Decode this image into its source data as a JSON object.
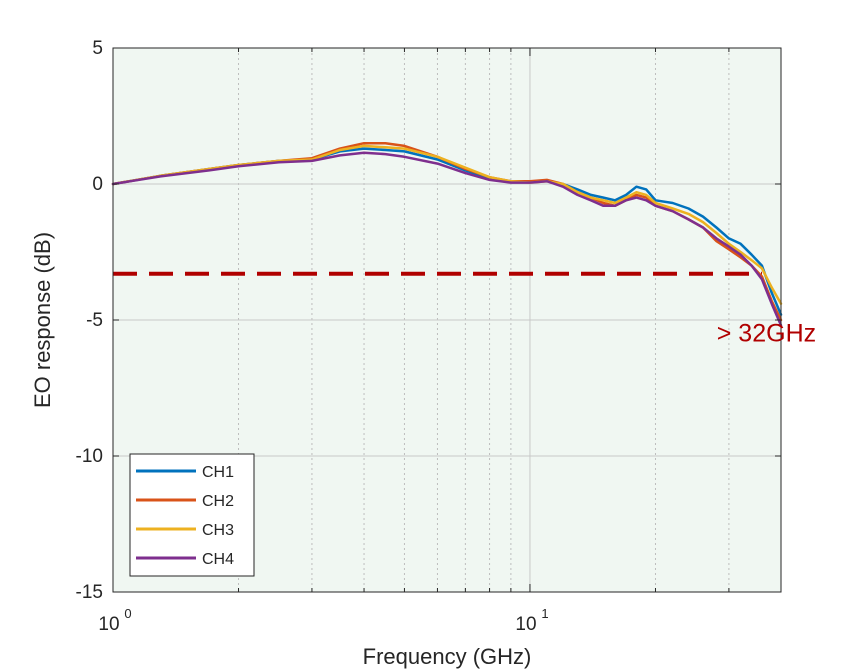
{
  "chart_data": {
    "type": "line",
    "xlabel": "Frequency (GHz)",
    "ylabel": "EO response (dB)",
    "xscale": "log",
    "xlim": [
      1,
      40
    ],
    "ylim": [
      -15,
      5
    ],
    "xticks": [
      {
        "value": 1,
        "base": "10",
        "exp": "0"
      },
      {
        "value": 10,
        "base": "10",
        "exp": "1"
      }
    ],
    "yticks": [
      "5",
      "0",
      "-5",
      "-10",
      "-15"
    ],
    "grid": true,
    "legend_position": "bottom-left",
    "series": [
      {
        "name": "CH1",
        "color": "#0072BD",
        "x": [
          1.0,
          1.3,
          1.7,
          2.0,
          2.5,
          3.0,
          3.5,
          4.0,
          4.5,
          5.0,
          6.0,
          7.0,
          8.0,
          9.0,
          10.0,
          11.0,
          12.0,
          13.0,
          14.0,
          15.0,
          16.0,
          17.0,
          18.0,
          19.0,
          20.0,
          22.0,
          24.0,
          26.0,
          28.0,
          30.0,
          32.0,
          34.0,
          36.0,
          38.0,
          40.0
        ],
        "y": [
          0.0,
          0.3,
          0.55,
          0.7,
          0.85,
          0.9,
          1.2,
          1.3,
          1.25,
          1.2,
          0.9,
          0.5,
          0.2,
          0.1,
          0.1,
          0.1,
          0.0,
          -0.2,
          -0.4,
          -0.5,
          -0.6,
          -0.4,
          -0.1,
          -0.2,
          -0.6,
          -0.7,
          -0.9,
          -1.2,
          -1.6,
          -2.0,
          -2.2,
          -2.6,
          -3.0,
          -4.0,
          -4.8
        ]
      },
      {
        "name": "CH2",
        "color": "#D95319",
        "x": [
          1.0,
          1.3,
          1.7,
          2.0,
          2.5,
          3.0,
          3.5,
          4.0,
          4.5,
          5.0,
          6.0,
          7.0,
          8.0,
          9.0,
          10.0,
          11.0,
          12.0,
          13.0,
          14.0,
          15.0,
          16.0,
          17.0,
          18.0,
          19.0,
          20.0,
          22.0,
          24.0,
          26.0,
          28.0,
          30.0,
          32.0,
          34.0,
          36.0,
          38.0,
          40.0
        ],
        "y": [
          0.0,
          0.3,
          0.55,
          0.7,
          0.85,
          0.95,
          1.3,
          1.5,
          1.5,
          1.4,
          1.0,
          0.55,
          0.25,
          0.1,
          0.1,
          0.15,
          0.0,
          -0.3,
          -0.5,
          -0.7,
          -0.8,
          -0.6,
          -0.4,
          -0.5,
          -0.8,
          -1.0,
          -1.3,
          -1.6,
          -2.1,
          -2.4,
          -2.7,
          -3.0,
          -3.4,
          -4.3,
          -5.0
        ]
      },
      {
        "name": "CH3",
        "color": "#EDB120",
        "x": [
          1.0,
          1.3,
          1.7,
          2.0,
          2.5,
          3.0,
          3.5,
          4.0,
          4.5,
          5.0,
          6.0,
          7.0,
          8.0,
          9.0,
          10.0,
          11.0,
          12.0,
          13.0,
          14.0,
          15.0,
          16.0,
          17.0,
          18.0,
          19.0,
          20.0,
          22.0,
          24.0,
          26.0,
          28.0,
          30.0,
          32.0,
          34.0,
          36.0,
          38.0,
          40.0
        ],
        "y": [
          0.0,
          0.3,
          0.55,
          0.7,
          0.85,
          0.9,
          1.25,
          1.4,
          1.35,
          1.3,
          1.0,
          0.6,
          0.25,
          0.1,
          0.05,
          0.1,
          0.0,
          -0.3,
          -0.5,
          -0.6,
          -0.7,
          -0.5,
          -0.3,
          -0.4,
          -0.7,
          -0.9,
          -1.1,
          -1.4,
          -1.8,
          -2.2,
          -2.5,
          -2.8,
          -3.1,
          -3.8,
          -4.4
        ]
      },
      {
        "name": "CH4",
        "color": "#7E2F8E",
        "x": [
          1.0,
          1.3,
          1.7,
          2.0,
          2.5,
          3.0,
          3.5,
          4.0,
          4.5,
          5.0,
          6.0,
          7.0,
          8.0,
          9.0,
          10.0,
          11.0,
          12.0,
          13.0,
          14.0,
          15.0,
          16.0,
          17.0,
          18.0,
          19.0,
          20.0,
          22.0,
          24.0,
          26.0,
          28.0,
          30.0,
          32.0,
          34.0,
          36.0,
          38.0,
          40.0
        ],
        "y": [
          0.0,
          0.28,
          0.5,
          0.65,
          0.8,
          0.85,
          1.05,
          1.15,
          1.1,
          1.0,
          0.75,
          0.4,
          0.15,
          0.05,
          0.05,
          0.1,
          -0.1,
          -0.4,
          -0.6,
          -0.8,
          -0.8,
          -0.6,
          -0.5,
          -0.6,
          -0.8,
          -1.0,
          -1.3,
          -1.6,
          -2.0,
          -2.3,
          -2.6,
          -3.0,
          -3.5,
          -4.4,
          -5.2
        ]
      }
    ],
    "reference_line": {
      "y": -3.3,
      "x_start": 1,
      "x_end": 36,
      "color": "#b00000",
      "style": "dashed"
    },
    "annotation": {
      "text": "> 32GHz",
      "x": 29,
      "y": -5.5,
      "color": "#b00000"
    }
  }
}
